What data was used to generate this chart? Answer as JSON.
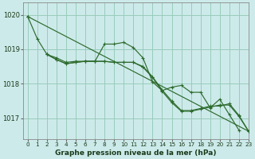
{
  "title": "Graphe pression niveau de la mer (hPa)",
  "bg_color": "#cdeaea",
  "grid_color": "#99ccbb",
  "line_color": "#2d6b2d",
  "xlim": [
    -0.5,
    23
  ],
  "ylim": [
    1016.4,
    1020.35
  ],
  "yticks": [
    1017,
    1018,
    1019,
    1020
  ],
  "xticks": [
    0,
    1,
    2,
    3,
    4,
    5,
    6,
    7,
    8,
    9,
    10,
    11,
    12,
    13,
    14,
    15,
    16,
    17,
    18,
    19,
    20,
    21,
    22,
    23
  ],
  "series": [
    [
      1019.95,
      1019.3,
      1018.85,
      1018.75,
      1018.6,
      1018.65,
      1018.65,
      1018.65,
      1019.15,
      1019.15,
      1019.2,
      1019.05,
      1018.75,
      1018.05,
      1017.8,
      1017.9,
      1017.95,
      1017.75,
      1017.75,
      1017.3,
      1017.55,
      1017.1,
      1016.65,
      null
    ],
    [
      1019.95,
      null,
      1018.85,
      1018.7,
      1018.6,
      1018.65,
      1018.65,
      1018.65,
      1018.7,
      1018.65,
      1018.65,
      1018.65,
      1018.5,
      1018.2,
      1017.8,
      1017.5,
      1017.2,
      1017.2,
      1017.25,
      1017.35,
      1017.35,
      1017.35,
      1017.05,
      1016.62
    ],
    [
      1019.95,
      null,
      1018.85,
      1018.7,
      1018.6,
      1018.65,
      1018.65,
      1018.65,
      1018.7,
      1018.65,
      1018.65,
      1018.65,
      1018.5,
      1018.2,
      1017.8,
      1017.45,
      1017.2,
      1017.2,
      1017.3,
      1017.35,
      1017.35,
      1017.35,
      1017.05,
      1016.62
    ],
    [
      1019.95,
      null,
      1018.85,
      1018.7,
      1018.6,
      1018.65,
      1018.65,
      1018.65,
      1018.7,
      1018.65,
      1018.65,
      1018.65,
      1018.5,
      1018.2,
      1017.8,
      1017.4,
      1017.2,
      1017.2,
      1017.28,
      1017.32,
      1017.38,
      1017.38,
      1017.05,
      1016.62
    ]
  ],
  "series2": [
    [
      1019.95,
      1019.3,
      1018.85,
      1018.75,
      1018.6,
      1018.65,
      1018.65,
      1018.65,
      1019.15,
      1019.15,
      1019.2,
      1019.05,
      1018.75,
      1018.05,
      1017.8,
      1017.9,
      1017.95,
      1017.75,
      1017.75,
      1017.3,
      1017.55,
      1017.1,
      1016.65,
      null
    ]
  ],
  "straight_line": [
    1019.95,
    1016.62
  ]
}
